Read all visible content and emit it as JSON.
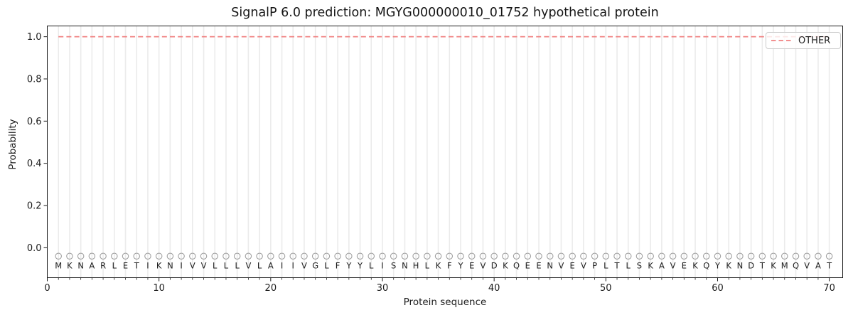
{
  "chart_data": {
    "type": "line",
    "title": "SignalP 6.0 prediction: MGYG000000010_01752 hypothetical protein",
    "xlabel": "Protein sequence",
    "ylabel": "Probability",
    "xlim": [
      0,
      71.2
    ],
    "ylim": [
      -0.142,
      1.051
    ],
    "xticks": [
      0,
      10,
      20,
      30,
      40,
      50,
      60,
      70
    ],
    "yticks": [
      {
        "value": 0.0,
        "label": "0.0"
      },
      {
        "value": 0.2,
        "label": "0.2"
      },
      {
        "value": 0.4,
        "label": "0.4"
      },
      {
        "value": 0.6,
        "label": "0.6"
      },
      {
        "value": 0.8,
        "label": "0.8"
      },
      {
        "value": 1.0,
        "label": "1.0"
      }
    ],
    "grid": {
      "vertical_per_residue": true,
      "color": "#ebebeb"
    },
    "sequence": "MKNARLETIKNIVVLLLVLAIIVGLFYYLISNHLKFYEVDKQEENVEVPLTLSKAVEKQYKNDTKMQVAT",
    "sequence_length": 70,
    "sequence_letter_y": -0.085,
    "marker_row": {
      "symbol": "open-circle",
      "y": -0.04,
      "color": "#a0a0a0"
    },
    "series": [
      {
        "name": "OTHER",
        "color": "#f08080",
        "linestyle": "dashed",
        "x_start": 1,
        "x_end": 70,
        "constant_value": 1.0
      }
    ],
    "legend": {
      "position": "upper-right",
      "entries": [
        {
          "label": "OTHER",
          "color": "#f08080",
          "linestyle": "dashed"
        }
      ]
    },
    "axis_color": "#1a1a1a",
    "text_color": "#1c1c1c"
  }
}
